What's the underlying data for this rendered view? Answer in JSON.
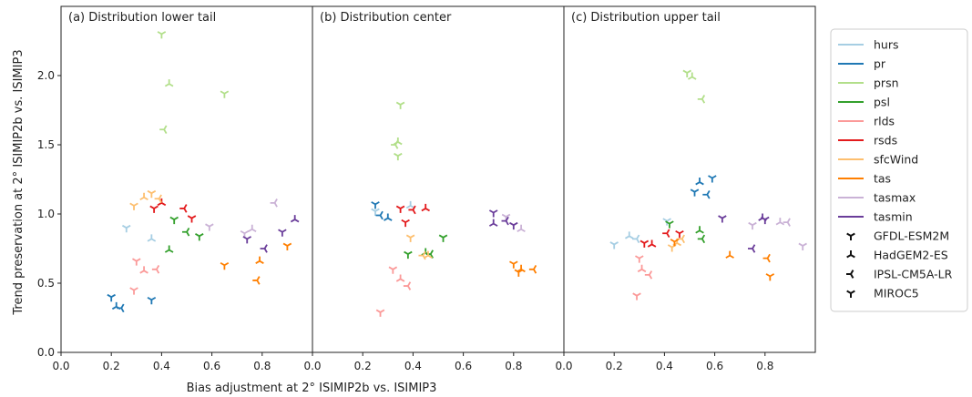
{
  "chart_data": {
    "type": "scatter",
    "xlabel": "Bias adjustment at 2° ISIMIP2b vs. ISIMIP3",
    "ylabel": "Trend preservation at 2° ISIMIP2b vs. ISIMIP3",
    "xlim": [
      0.0,
      1.0
    ],
    "ylim": [
      0.0,
      2.5
    ],
    "xticks": [
      "0.0",
      "0.2",
      "0.4",
      "0.6",
      "0.8"
    ],
    "yticks": [
      "0.0",
      "0.5",
      "1.0",
      "1.5",
      "2.0"
    ],
    "grid": false,
    "legend_position": "right",
    "variables": [
      {
        "name": "hurs",
        "color": "#a6cee3"
      },
      {
        "name": "pr",
        "color": "#1f78b4"
      },
      {
        "name": "prsn",
        "color": "#b2df8a"
      },
      {
        "name": "psl",
        "color": "#33a02c"
      },
      {
        "name": "rlds",
        "color": "#fb9a99"
      },
      {
        "name": "rsds",
        "color": "#e31a1c"
      },
      {
        "name": "sfcWind",
        "color": "#fdbf6f"
      },
      {
        "name": "tas",
        "color": "#ff7f00"
      },
      {
        "name": "tasmax",
        "color": "#cab2d6"
      },
      {
        "name": "tasmin",
        "color": "#6a3d9a"
      }
    ],
    "models": [
      {
        "name": "GFDL-ESM2M",
        "marker": "tri_down"
      },
      {
        "name": "HadGEM2-ES",
        "marker": "tri_up"
      },
      {
        "name": "IPSL-CM5A-LR",
        "marker": "tri_left"
      },
      {
        "name": "MIROC5",
        "marker": "tri_right"
      }
    ],
    "panels": [
      {
        "title": "(a) Distribution lower tail",
        "points": [
          {
            "var": "hurs",
            "model": "GFDL-ESM2M",
            "x": 0.26,
            "y": 0.9
          },
          {
            "var": "hurs",
            "model": "HadGEM2-ES",
            "x": 0.36,
            "y": 0.82
          },
          {
            "var": "pr",
            "model": "GFDL-ESM2M",
            "x": 0.2,
            "y": 0.4
          },
          {
            "var": "pr",
            "model": "HadGEM2-ES",
            "x": 0.22,
            "y": 0.33
          },
          {
            "var": "pr",
            "model": "IPSL-CM5A-LR",
            "x": 0.24,
            "y": 0.32
          },
          {
            "var": "pr",
            "model": "MIROC5",
            "x": 0.36,
            "y": 0.38
          },
          {
            "var": "prsn",
            "model": "GFDL-ESM2M",
            "x": 0.4,
            "y": 2.3
          },
          {
            "var": "prsn",
            "model": "HadGEM2-ES",
            "x": 0.43,
            "y": 1.94
          },
          {
            "var": "prsn",
            "model": "IPSL-CM5A-LR",
            "x": 0.41,
            "y": 1.61
          },
          {
            "var": "prsn",
            "model": "MIROC5",
            "x": 0.65,
            "y": 1.87
          },
          {
            "var": "psl",
            "model": "GFDL-ESM2M",
            "x": 0.45,
            "y": 0.96
          },
          {
            "var": "psl",
            "model": "HadGEM2-ES",
            "x": 0.43,
            "y": 0.74
          },
          {
            "var": "psl",
            "model": "IPSL-CM5A-LR",
            "x": 0.5,
            "y": 0.87
          },
          {
            "var": "psl",
            "model": "MIROC5",
            "x": 0.55,
            "y": 0.84
          },
          {
            "var": "rlds",
            "model": "GFDL-ESM2M",
            "x": 0.3,
            "y": 0.66
          },
          {
            "var": "rlds",
            "model": "HadGEM2-ES",
            "x": 0.33,
            "y": 0.59
          },
          {
            "var": "rlds",
            "model": "IPSL-CM5A-LR",
            "x": 0.38,
            "y": 0.6
          },
          {
            "var": "rlds",
            "model": "MIROC5",
            "x": 0.29,
            "y": 0.45
          },
          {
            "var": "rsds",
            "model": "GFDL-ESM2M",
            "x": 0.37,
            "y": 1.04
          },
          {
            "var": "rsds",
            "model": "HadGEM2-ES",
            "x": 0.4,
            "y": 1.08
          },
          {
            "var": "rsds",
            "model": "IPSL-CM5A-LR",
            "x": 0.49,
            "y": 1.04
          },
          {
            "var": "rsds",
            "model": "MIROC5",
            "x": 0.52,
            "y": 0.97
          },
          {
            "var": "sfcWind",
            "model": "GFDL-ESM2M",
            "x": 0.36,
            "y": 1.15
          },
          {
            "var": "sfcWind",
            "model": "HadGEM2-ES",
            "x": 0.33,
            "y": 1.12
          },
          {
            "var": "sfcWind",
            "model": "IPSL-CM5A-LR",
            "x": 0.39,
            "y": 1.11
          },
          {
            "var": "sfcWind",
            "model": "MIROC5",
            "x": 0.29,
            "y": 1.06
          },
          {
            "var": "tas",
            "model": "GFDL-ESM2M",
            "x": 0.65,
            "y": 0.63
          },
          {
            "var": "tas",
            "model": "HadGEM2-ES",
            "x": 0.79,
            "y": 0.66
          },
          {
            "var": "tas",
            "model": "IPSL-CM5A-LR",
            "x": 0.78,
            "y": 0.52
          },
          {
            "var": "tas",
            "model": "MIROC5",
            "x": 0.9,
            "y": 0.77
          },
          {
            "var": "tasmax",
            "model": "GFDL-ESM2M",
            "x": 0.59,
            "y": 0.91
          },
          {
            "var": "tasmax",
            "model": "HadGEM2-ES",
            "x": 0.76,
            "y": 0.89
          },
          {
            "var": "tasmax",
            "model": "IPSL-CM5A-LR",
            "x": 0.85,
            "y": 1.08
          },
          {
            "var": "tasmax",
            "model": "MIROC5",
            "x": 0.73,
            "y": 0.86
          },
          {
            "var": "tasmin",
            "model": "GFDL-ESM2M",
            "x": 0.74,
            "y": 0.82
          },
          {
            "var": "tasmin",
            "model": "HadGEM2-ES",
            "x": 0.93,
            "y": 0.96
          },
          {
            "var": "tasmin",
            "model": "IPSL-CM5A-LR",
            "x": 0.81,
            "y": 0.75
          },
          {
            "var": "tasmin",
            "model": "MIROC5",
            "x": 0.88,
            "y": 0.87
          }
        ]
      },
      {
        "title": "(b) Distribution center",
        "points": [
          {
            "var": "hurs",
            "model": "GFDL-ESM2M",
            "x": 0.25,
            "y": 1.02
          },
          {
            "var": "hurs",
            "model": "HadGEM2-ES",
            "x": 0.39,
            "y": 1.06
          },
          {
            "var": "pr",
            "model": "GFDL-ESM2M",
            "x": 0.25,
            "y": 1.07
          },
          {
            "var": "pr",
            "model": "HadGEM2-ES",
            "x": 0.3,
            "y": 0.97
          },
          {
            "var": "pr",
            "model": "IPSL-CM5A-LR",
            "x": 0.27,
            "y": 0.99
          },
          {
            "var": "prsn",
            "model": "GFDL-ESM2M",
            "x": 0.35,
            "y": 1.79
          },
          {
            "var": "prsn",
            "model": "HadGEM2-ES",
            "x": 0.34,
            "y": 1.52
          },
          {
            "var": "prsn",
            "model": "IPSL-CM5A-LR",
            "x": 0.33,
            "y": 1.5
          },
          {
            "var": "prsn",
            "model": "MIROC5",
            "x": 0.34,
            "y": 1.42
          },
          {
            "var": "psl",
            "model": "GFDL-ESM2M",
            "x": 0.38,
            "y": 0.71
          },
          {
            "var": "psl",
            "model": "HadGEM2-ES",
            "x": 0.45,
            "y": 0.72
          },
          {
            "var": "psl",
            "model": "IPSL-CM5A-LR",
            "x": 0.47,
            "y": 0.71
          },
          {
            "var": "psl",
            "model": "MIROC5",
            "x": 0.52,
            "y": 0.83
          },
          {
            "var": "rlds",
            "model": "GFDL-ESM2M",
            "x": 0.32,
            "y": 0.6
          },
          {
            "var": "rlds",
            "model": "HadGEM2-ES",
            "x": 0.35,
            "y": 0.53
          },
          {
            "var": "rlds",
            "model": "IPSL-CM5A-LR",
            "x": 0.38,
            "y": 0.48
          },
          {
            "var": "rlds",
            "model": "MIROC5",
            "x": 0.27,
            "y": 0.29
          },
          {
            "var": "rsds",
            "model": "GFDL-ESM2M",
            "x": 0.35,
            "y": 1.04
          },
          {
            "var": "rsds",
            "model": "HadGEM2-ES",
            "x": 0.45,
            "y": 1.04
          },
          {
            "var": "rsds",
            "model": "IPSL-CM5A-LR",
            "x": 0.4,
            "y": 1.03
          },
          {
            "var": "rsds",
            "model": "MIROC5",
            "x": 0.37,
            "y": 0.94
          },
          {
            "var": "sfcWind",
            "model": "GFDL-ESM2M",
            "x": 0.39,
            "y": 0.83
          },
          {
            "var": "sfcWind",
            "model": "HadGEM2-ES",
            "x": 0.46,
            "y": 0.7
          },
          {
            "var": "sfcWind",
            "model": "IPSL-CM5A-LR",
            "x": 0.44,
            "y": 0.7
          },
          {
            "var": "tas",
            "model": "GFDL-ESM2M",
            "x": 0.8,
            "y": 0.64
          },
          {
            "var": "tas",
            "model": "HadGEM2-ES",
            "x": 0.83,
            "y": 0.6
          },
          {
            "var": "tas",
            "model": "IPSL-CM5A-LR",
            "x": 0.88,
            "y": 0.6
          },
          {
            "var": "tas",
            "model": "MIROC5",
            "x": 0.82,
            "y": 0.58
          },
          {
            "var": "tasmax",
            "model": "GFDL-ESM2M",
            "x": 0.77,
            "y": 0.98
          },
          {
            "var": "tasmax",
            "model": "HadGEM2-ES",
            "x": 0.83,
            "y": 0.89
          },
          {
            "var": "tasmin",
            "model": "GFDL-ESM2M",
            "x": 0.72,
            "y": 1.01
          },
          {
            "var": "tasmin",
            "model": "HadGEM2-ES",
            "x": 0.72,
            "y": 0.93
          },
          {
            "var": "tasmin",
            "model": "IPSL-CM5A-LR",
            "x": 0.77,
            "y": 0.95
          },
          {
            "var": "tasmin",
            "model": "MIROC5",
            "x": 0.8,
            "y": 0.92
          }
        ]
      },
      {
        "title": "(c) Distribution upper tail",
        "points": [
          {
            "var": "hurs",
            "model": "GFDL-ESM2M",
            "x": 0.2,
            "y": 0.78
          },
          {
            "var": "hurs",
            "model": "HadGEM2-ES",
            "x": 0.26,
            "y": 0.84
          },
          {
            "var": "hurs",
            "model": "IPSL-CM5A-LR",
            "x": 0.29,
            "y": 0.82
          },
          {
            "var": "hurs",
            "model": "MIROC5",
            "x": 0.41,
            "y": 0.95
          },
          {
            "var": "pr",
            "model": "GFDL-ESM2M",
            "x": 0.52,
            "y": 1.16
          },
          {
            "var": "pr",
            "model": "HadGEM2-ES",
            "x": 0.54,
            "y": 1.23
          },
          {
            "var": "pr",
            "model": "IPSL-CM5A-LR",
            "x": 0.57,
            "y": 1.14
          },
          {
            "var": "pr",
            "model": "MIROC5",
            "x": 0.59,
            "y": 1.26
          },
          {
            "var": "prsn",
            "model": "GFDL-ESM2M",
            "x": 0.49,
            "y": 2.02
          },
          {
            "var": "prsn",
            "model": "HadGEM2-ES",
            "x": 0.51,
            "y": 1.99
          },
          {
            "var": "prsn",
            "model": "IPSL-CM5A-LR",
            "x": 0.55,
            "y": 1.83
          },
          {
            "var": "psl",
            "model": "GFDL-ESM2M",
            "x": 0.42,
            "y": 0.93
          },
          {
            "var": "psl",
            "model": "HadGEM2-ES",
            "x": 0.54,
            "y": 0.88
          },
          {
            "var": "psl",
            "model": "IPSL-CM5A-LR",
            "x": 0.55,
            "y": 0.82
          },
          {
            "var": "rlds",
            "model": "GFDL-ESM2M",
            "x": 0.3,
            "y": 0.68
          },
          {
            "var": "rlds",
            "model": "HadGEM2-ES",
            "x": 0.31,
            "y": 0.6
          },
          {
            "var": "rlds",
            "model": "IPSL-CM5A-LR",
            "x": 0.34,
            "y": 0.56
          },
          {
            "var": "rlds",
            "model": "MIROC5",
            "x": 0.29,
            "y": 0.41
          },
          {
            "var": "rsds",
            "model": "GFDL-ESM2M",
            "x": 0.32,
            "y": 0.79
          },
          {
            "var": "rsds",
            "model": "HadGEM2-ES",
            "x": 0.35,
            "y": 0.78
          },
          {
            "var": "rsds",
            "model": "IPSL-CM5A-LR",
            "x": 0.41,
            "y": 0.86
          },
          {
            "var": "rsds",
            "model": "MIROC5",
            "x": 0.46,
            "y": 0.86
          },
          {
            "var": "sfcWind",
            "model": "GFDL-ESM2M",
            "x": 0.43,
            "y": 0.76
          },
          {
            "var": "sfcWind",
            "model": "HadGEM2-ES",
            "x": 0.45,
            "y": 0.79
          },
          {
            "var": "sfcWind",
            "model": "IPSL-CM5A-LR",
            "x": 0.47,
            "y": 0.82
          },
          {
            "var": "tas",
            "model": "GFDL-ESM2M",
            "x": 0.44,
            "y": 0.8
          },
          {
            "var": "tas",
            "model": "HadGEM2-ES",
            "x": 0.66,
            "y": 0.7
          },
          {
            "var": "tas",
            "model": "IPSL-CM5A-LR",
            "x": 0.81,
            "y": 0.68
          },
          {
            "var": "tas",
            "model": "MIROC5",
            "x": 0.82,
            "y": 0.55
          },
          {
            "var": "tasmax",
            "model": "GFDL-ESM2M",
            "x": 0.75,
            "y": 0.92
          },
          {
            "var": "tasmax",
            "model": "HadGEM2-ES",
            "x": 0.86,
            "y": 0.94
          },
          {
            "var": "tasmax",
            "model": "IPSL-CM5A-LR",
            "x": 0.89,
            "y": 0.94
          },
          {
            "var": "tasmax",
            "model": "MIROC5",
            "x": 0.95,
            "y": 0.77
          },
          {
            "var": "tasmin",
            "model": "GFDL-ESM2M",
            "x": 0.63,
            "y": 0.97
          },
          {
            "var": "tasmin",
            "model": "HadGEM2-ES",
            "x": 0.79,
            "y": 0.97
          },
          {
            "var": "tasmin",
            "model": "IPSL-CM5A-LR",
            "x": 0.75,
            "y": 0.75
          },
          {
            "var": "tasmin",
            "model": "MIROC5",
            "x": 0.8,
            "y": 0.96
          }
        ]
      }
    ]
  }
}
